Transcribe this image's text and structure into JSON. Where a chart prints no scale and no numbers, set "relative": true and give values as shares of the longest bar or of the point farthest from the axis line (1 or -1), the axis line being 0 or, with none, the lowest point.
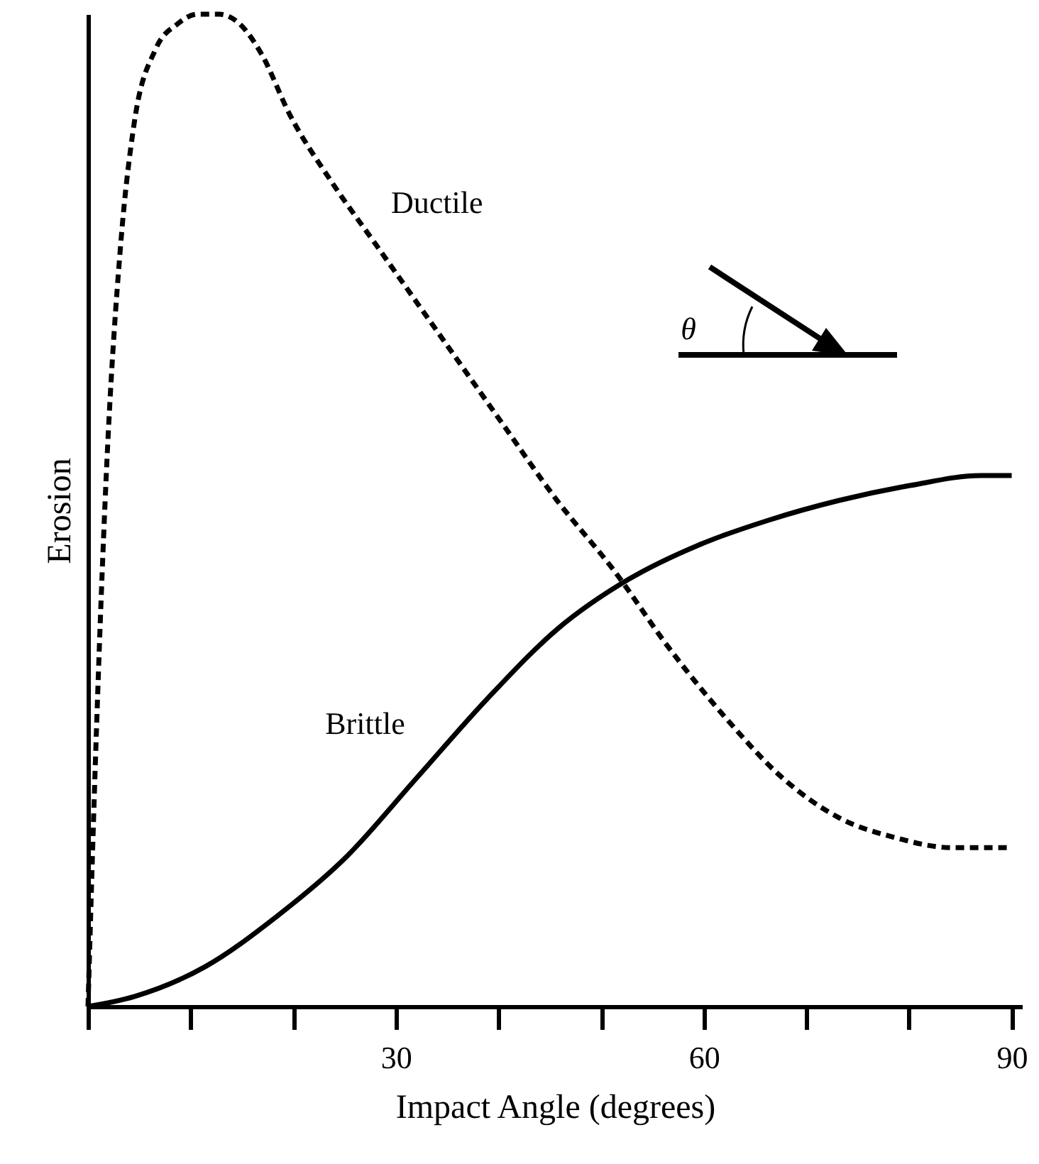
{
  "chart_data": {
    "type": "line",
    "xlabel": "Impact Angle (degrees)",
    "ylabel": "Erosion",
    "relative": true,
    "x": [
      0,
      0.7,
      1.8,
      3.2,
      4.5,
      6.6,
      8.7,
      10.7,
      12.8,
      14.8,
      16.9,
      19.6,
      23.8,
      27.9,
      32.0,
      36.1,
      40.2,
      45.7,
      51.2,
      56.7,
      62.2,
      67.7,
      73.2,
      78.7,
      84.2,
      90
    ],
    "series": [
      {
        "name": "Ductile",
        "color": "#000000",
        "line_style": "dashed",
        "values": [
          0,
          0.24,
          0.54,
          0.77,
          0.89,
          0.965,
          0.99,
          1.0,
          1.0,
          0.99,
          0.96,
          0.9,
          0.83,
          0.77,
          0.71,
          0.65,
          0.59,
          0.51,
          0.44,
          0.36,
          0.29,
          0.23,
          0.19,
          0.17,
          0.16,
          0.16
        ]
      },
      {
        "name": "Brittle",
        "color": "#000000",
        "line_style": "solid",
        "x": [
          0,
          4.5,
          11.4,
          18.3,
          25.1,
          32.0,
          38.9,
          45.7,
          52.6,
          59.5,
          66.3,
          73.2,
          80.1,
          87,
          90
        ],
        "values": [
          0,
          0.01,
          0.04,
          0.09,
          0.15,
          0.23,
          0.31,
          0.38,
          0.43,
          0.465,
          0.49,
          0.51,
          0.525,
          0.535,
          0.535
        ]
      }
    ],
    "xlim": [
      0,
      91
    ],
    "xticks": [
      {
        "value": 0,
        "label": null
      },
      {
        "value": 10,
        "label": null
      },
      {
        "value": 20,
        "label": null
      },
      30,
      {
        "value": 40,
        "label": null
      },
      {
        "value": 50,
        "label": null
      },
      60,
      {
        "value": 70,
        "label": null
      },
      {
        "value": 80,
        "label": null
      },
      90
    ],
    "tick_labels": "x",
    "grid": false,
    "marker": "none",
    "legend": false,
    "annotations": [
      "θ"
    ]
  }
}
